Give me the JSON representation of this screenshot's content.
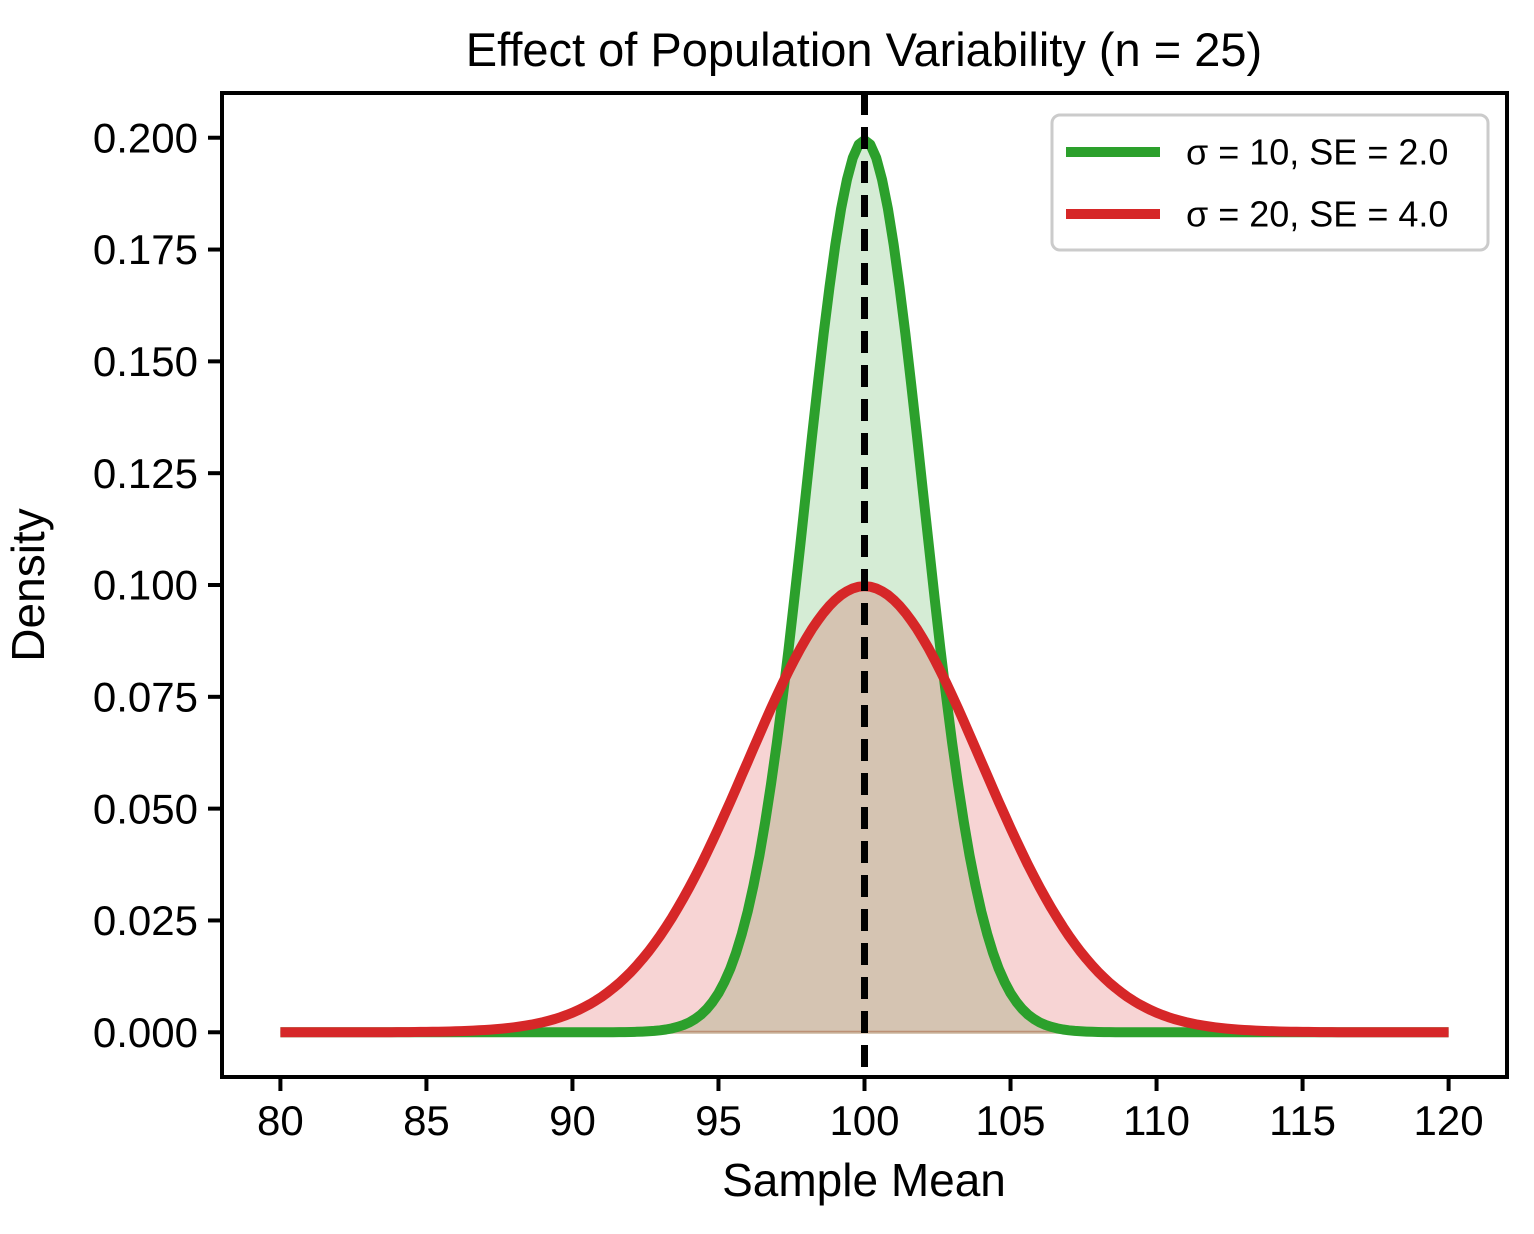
{
  "figure": {
    "background": "#ffffff"
  },
  "chart_data": {
    "type": "line",
    "title": "Effect of Population Variability (n = 25)",
    "xlabel": "Sample Mean",
    "ylabel": "Density",
    "xlim": [
      78,
      122
    ],
    "ylim": [
      -0.01,
      0.21
    ],
    "grid": false,
    "xticks": {
      "values": [
        80,
        85,
        90,
        95,
        100,
        105,
        110,
        115,
        120
      ],
      "labels": [
        "80",
        "85",
        "90",
        "95",
        "100",
        "105",
        "110",
        "115",
        "120"
      ]
    },
    "yticks": {
      "values": [
        0.0,
        0.025,
        0.05,
        0.075,
        0.1,
        0.125,
        0.15,
        0.175,
        0.2
      ],
      "labels": [
        "0.000",
        "0.025",
        "0.050",
        "0.075",
        "0.100",
        "0.125",
        "0.150",
        "0.175",
        "0.200"
      ]
    },
    "mean_line": {
      "x": 100,
      "color": "#000000",
      "style": "dashed"
    },
    "legend": {
      "position": "upper right",
      "background": "#ffffff",
      "border_color": "#cbcbcb"
    },
    "series": [
      {
        "name": "sigma-10",
        "label": "σ = 10, SE = 2.0",
        "sigma": 10,
        "se": 2.0,
        "mean": 100,
        "n": 25,
        "color": "#2ca02c",
        "fill_alpha": 0.2,
        "peak_density": 0.1995,
        "x_start": 80,
        "x_end": 120,
        "sample_points": {
          "x": [
            80,
            82,
            84,
            86,
            88,
            90,
            92,
            94,
            96,
            98,
            100,
            102,
            104,
            106,
            108,
            110,
            112,
            114,
            116,
            118,
            120
          ],
          "y": [
            0.0,
            0.0,
            0.0,
            0.0,
            0.0,
            0.0,
            0.0001,
            0.0022,
            0.027,
            0.121,
            0.1995,
            0.121,
            0.027,
            0.0022,
            0.0001,
            0.0,
            0.0,
            0.0,
            0.0,
            0.0,
            0.0
          ]
        }
      },
      {
        "name": "sigma-20",
        "label": "σ = 20, SE = 4.0",
        "sigma": 20,
        "se": 4.0,
        "mean": 100,
        "n": 25,
        "color": "#d62728",
        "fill_alpha": 0.2,
        "peak_density": 0.0997,
        "x_start": 80,
        "x_end": 120,
        "sample_points": {
          "x": [
            80,
            82,
            84,
            86,
            88,
            90,
            92,
            94,
            96,
            98,
            100,
            102,
            104,
            106,
            108,
            110,
            112,
            114,
            116,
            118,
            120
          ],
          "y": [
            0.0,
            0.0,
            0.0,
            0.0002,
            0.0011,
            0.0044,
            0.0135,
            0.0324,
            0.0605,
            0.088,
            0.0997,
            0.088,
            0.0605,
            0.0324,
            0.0135,
            0.0044,
            0.0011,
            0.0002,
            0.0,
            0.0,
            0.0
          ]
        }
      }
    ]
  }
}
